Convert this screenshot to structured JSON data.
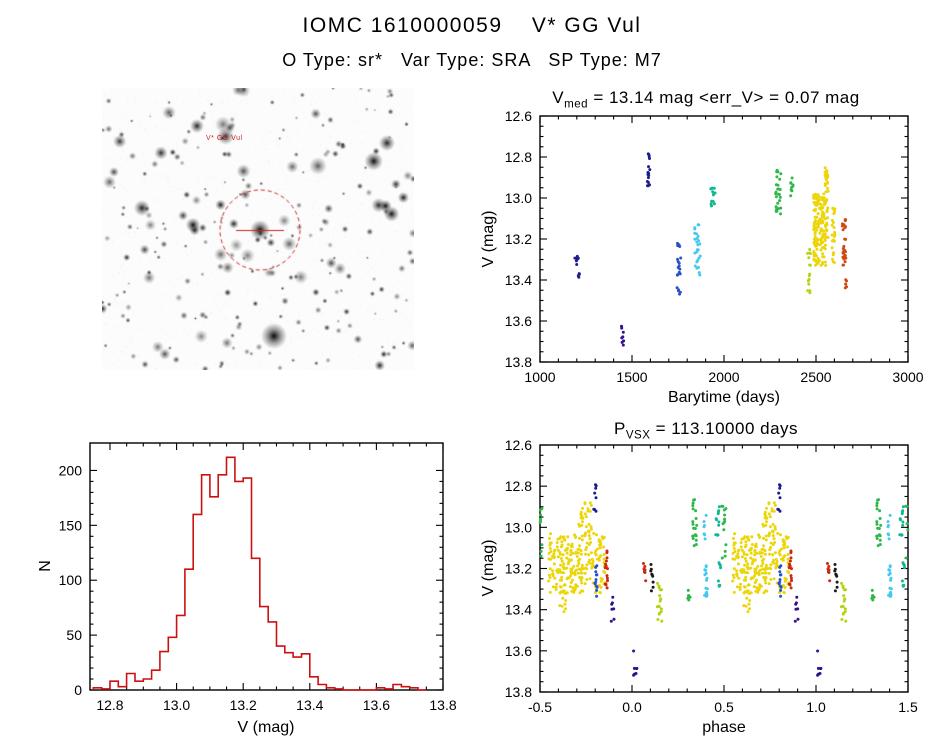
{
  "header": {
    "title": "IOMC 1610000059    V* GG Vul",
    "subtitle": "O Type: sr*   Var Type: SRA   SP Type: M7"
  },
  "finder": {
    "target_label": "V* GG Vul",
    "aperture_color": "#cc2222"
  },
  "chart_data": [
    {
      "id": "lightcurve",
      "type": "scatter",
      "title": {
        "base": "V",
        "sub": "med",
        "rest": " = 13.14 mag <err_V> = 0.07 mag"
      },
      "xlabel": "Barytime (days)",
      "ylabel": "V (mag)",
      "xlim": [
        1000,
        3000
      ],
      "ylim": [
        12.6,
        13.8
      ],
      "xtick_values": [
        1000,
        1500,
        2000,
        2500,
        3000
      ],
      "xtick_labels": [
        "1000",
        "1500",
        "2000",
        "2500",
        "3000"
      ],
      "ytick_values": [
        12.6,
        12.8,
        13.0,
        13.2,
        13.4,
        13.6,
        13.8
      ],
      "ytick_labels": [
        "12.6",
        "12.8",
        "13.0",
        "13.2",
        "13.4",
        "13.6",
        "13.8"
      ],
      "xminor": 5,
      "yminor": 4,
      "clusters": [
        {
          "t": 1200,
          "dt": 12,
          "v": [
            13.24,
            13.34
          ],
          "n": 7,
          "color": "#201c8c"
        },
        {
          "t": 1212,
          "dt": 6,
          "v": [
            13.36,
            13.43
          ],
          "n": 4,
          "color": "#201c8c"
        },
        {
          "t": 1448,
          "dt": 10,
          "v": [
            13.62,
            13.72
          ],
          "n": 8,
          "color": "#33118c"
        },
        {
          "t": 1590,
          "dt": 7,
          "v": [
            12.78,
            12.97
          ],
          "n": 16,
          "color": "#1c1c90"
        },
        {
          "t": 1755,
          "dt": 10,
          "v": [
            13.2,
            13.47
          ],
          "n": 22,
          "color": "#2c50c8"
        },
        {
          "t": 1855,
          "dt": 16,
          "v": [
            13.13,
            13.38
          ],
          "n": 26,
          "color": "#45c8f0"
        },
        {
          "t": 1940,
          "dt": 12,
          "v": [
            12.94,
            13.06
          ],
          "n": 14,
          "color": "#0fb890"
        },
        {
          "t": 2295,
          "dt": 14,
          "v": [
            12.85,
            13.08
          ],
          "n": 26,
          "color": "#2eb84a"
        },
        {
          "t": 2368,
          "dt": 7,
          "v": [
            12.9,
            13.02
          ],
          "n": 9,
          "color": "#2eb84a"
        },
        {
          "t": 2462,
          "dt": 9,
          "v": [
            13.24,
            13.47
          ],
          "n": 16,
          "color": "#b4d414"
        },
        {
          "t": 2520,
          "dt": 35,
          "v": [
            12.98,
            13.33
          ],
          "n": 150,
          "cols": 9,
          "color": "#ecd60a"
        },
        {
          "t": 2556,
          "dt": 10,
          "v": [
            12.85,
            13.2
          ],
          "n": 35,
          "color": "#ecd60a"
        },
        {
          "t": 2595,
          "dt": 8,
          "v": [
            13.05,
            13.32
          ],
          "n": 25,
          "color": "#ecd60a"
        },
        {
          "t": 2652,
          "dt": 10,
          "v": [
            13.1,
            13.33
          ],
          "n": 30,
          "color": "#d04a10"
        },
        {
          "t": 2662,
          "dt": 6,
          "v": [
            13.38,
            13.47
          ],
          "n": 5,
          "color": "#d04a10"
        }
      ]
    },
    {
      "id": "histogram",
      "type": "bar",
      "xlabel": "V (mag)",
      "ylabel": "N",
      "color": "#cc1111",
      "xlim": [
        12.74,
        13.8
      ],
      "ylim": [
        225,
        0
      ],
      "xtick_values": [
        12.8,
        13.0,
        13.2,
        13.4,
        13.6,
        13.8
      ],
      "xtick_labels": [
        "12.8",
        "13.0",
        "13.2",
        "13.4",
        "13.6",
        "13.8"
      ],
      "ytick_values": [
        0,
        50,
        100,
        150,
        200
      ],
      "ytick_labels": [
        "0",
        "50",
        "100",
        "150",
        "200"
      ],
      "xminor": 4,
      "yminor": 5,
      "bin_start": 12.75,
      "bin_width": 0.025,
      "counts": [
        2,
        1,
        8,
        3,
        15,
        8,
        10,
        18,
        35,
        48,
        68,
        110,
        160,
        196,
        176,
        196,
        212,
        190,
        193,
        120,
        76,
        62,
        40,
        34,
        30,
        33,
        12,
        5,
        2,
        1,
        0,
        0,
        0,
        0,
        2,
        1,
        5,
        3,
        2,
        0
      ]
    },
    {
      "id": "phase",
      "type": "scatter",
      "fold": true,
      "title": {
        "base": "P",
        "sub": "VSX",
        "rest": " = 113.10000 days"
      },
      "xlabel": "phase",
      "ylabel": "V (mag)",
      "period_days": 113.1,
      "xlim": [
        -0.5,
        1.5
      ],
      "ylim": [
        12.6,
        13.8
      ],
      "xtick_values": [
        -0.5,
        0.0,
        0.5,
        1.0,
        1.5
      ],
      "xtick_labels": [
        "-0.5",
        "0.0",
        "0.5",
        "1.0",
        "1.5"
      ],
      "ytick_values": [
        12.6,
        12.8,
        13.0,
        13.2,
        13.4,
        13.6,
        13.8
      ],
      "ytick_labels": [
        "12.6",
        "12.8",
        "13.0",
        "13.2",
        "13.4",
        "13.6",
        "13.8"
      ],
      "xminor": 5,
      "yminor": 4,
      "clusters": [
        {
          "t": 0.7,
          "dt": 0.155,
          "v": [
            13.03,
            13.32
          ],
          "n": 230,
          "cols": 16,
          "color": "#ecd60a"
        },
        {
          "t": 0.745,
          "dt": 0.035,
          "v": [
            12.88,
            13.05
          ],
          "n": 30,
          "color": "#ecd60a"
        },
        {
          "t": 0.62,
          "dt": 0.02,
          "v": [
            13.3,
            13.42
          ],
          "n": 10,
          "color": "#ecd60a"
        },
        {
          "t": 0.8,
          "dt": 0.008,
          "v": [
            12.78,
            12.93
          ],
          "n": 8,
          "color": "#1c1c90"
        },
        {
          "t": 0.805,
          "dt": 0.008,
          "v": [
            13.18,
            13.36
          ],
          "n": 12,
          "color": "#2c50c8"
        },
        {
          "t": 0.86,
          "dt": 0.007,
          "v": [
            13.1,
            13.3
          ],
          "n": 16,
          "color": "#cc2a10"
        },
        {
          "t": 0.895,
          "dt": 0.008,
          "v": [
            13.3,
            13.46
          ],
          "n": 7,
          "color": "#33118c"
        },
        {
          "t": 0.02,
          "dt": 0.012,
          "v": [
            13.6,
            13.72
          ],
          "n": 8,
          "color": "#33118c"
        },
        {
          "t": 0.07,
          "dt": 0.008,
          "v": [
            13.14,
            13.26
          ],
          "n": 9,
          "color": "#cc2a10"
        },
        {
          "t": 0.11,
          "dt": 0.008,
          "v": [
            13.18,
            13.32
          ],
          "n": 9,
          "color": "#1a1a1a"
        },
        {
          "t": 0.15,
          "dt": 0.012,
          "v": [
            13.27,
            13.46
          ],
          "n": 18,
          "color": "#b4d414"
        },
        {
          "t": 0.34,
          "dt": 0.012,
          "v": [
            12.86,
            13.1
          ],
          "n": 20,
          "color": "#2eb84a"
        },
        {
          "t": 0.31,
          "dt": 0.008,
          "v": [
            13.26,
            13.36
          ],
          "n": 6,
          "color": "#2eb84a"
        },
        {
          "t": 0.4,
          "dt": 0.01,
          "v": [
            13.13,
            13.36
          ],
          "n": 18,
          "color": "#45c8f0"
        },
        {
          "t": 0.395,
          "dt": 0.008,
          "v": [
            12.94,
            13.07
          ],
          "n": 7,
          "color": "#45c8f0"
        },
        {
          "t": 0.465,
          "dt": 0.01,
          "v": [
            12.9,
            13.05
          ],
          "n": 12,
          "color": "#0fb890"
        },
        {
          "t": 0.475,
          "dt": 0.008,
          "v": [
            13.15,
            13.3
          ],
          "n": 8,
          "color": "#0fb890"
        },
        {
          "t": 0.5,
          "dt": 0.012,
          "v": [
            12.84,
            13.15
          ],
          "n": 14,
          "color": "#2eb84a"
        }
      ]
    }
  ]
}
